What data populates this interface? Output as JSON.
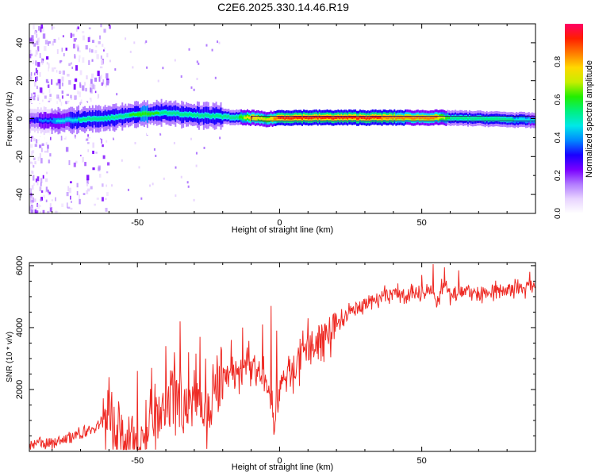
{
  "chart_data": [
    {
      "type": "heatmap",
      "title": "C2E6.2025.330.14.46.R19",
      "xlabel": "Height of straight line (km)",
      "ylabel": "Frequency (Hz)",
      "xlim": [
        -88,
        90
      ],
      "ylim": [
        -50,
        50
      ],
      "x_ticks": [
        -50,
        0,
        50
      ],
      "x_tick_labels": [
        "-50",
        "0",
        "50"
      ],
      "y_ticks": [
        -40,
        -20,
        0,
        20,
        40
      ],
      "y_tick_labels": [
        "-40",
        "-20",
        "0",
        "20",
        "40"
      ],
      "colorbar": {
        "label": "Normalized spectral amplitude",
        "range": [
          0,
          1
        ],
        "ticks": [
          0.0,
          0.2,
          0.4,
          0.6,
          0.8
        ],
        "tick_labels": [
          "0.0",
          "0.2",
          "0.4",
          "0.6",
          "0.8"
        ],
        "colors": [
          "#ffffff",
          "#e8d4ff",
          "#b27cff",
          "#7a00ff",
          "#1a00ff",
          "#0088ff",
          "#00e8e8",
          "#00f080",
          "#22ee00",
          "#c8ee00",
          "#ffd800",
          "#ff7a00",
          "#ff1e00",
          "#ff0066"
        ]
      },
      "ridge": {
        "x": [
          -88,
          -80,
          -70,
          -62,
          -55,
          -48,
          -40,
          -35,
          -30,
          -25,
          -20,
          -15,
          -10,
          -5,
          0,
          10,
          20,
          30,
          40,
          50,
          55,
          60,
          70,
          80,
          90
        ],
        "center_hz": [
          -1,
          -1,
          -0.5,
          0,
          1.5,
          2.5,
          3,
          2.5,
          2,
          1.5,
          1,
          0.5,
          0.5,
          -0.5,
          0.5,
          0.5,
          0.5,
          0.5,
          0.5,
          0.5,
          0.5,
          0.3,
          0,
          -0.5,
          -1
        ],
        "amplitude": [
          0.35,
          0.45,
          0.55,
          0.6,
          0.6,
          0.65,
          0.6,
          0.6,
          0.55,
          0.55,
          0.6,
          0.6,
          0.85,
          0.75,
          0.95,
          0.95,
          0.95,
          0.95,
          0.9,
          0.85,
          0.85,
          0.6,
          0.55,
          0.55,
          0.5
        ]
      }
    },
    {
      "type": "line",
      "xlabel": "Height of straight line (km)",
      "ylabel": "SNR (10 * v/v)",
      "xlim": [
        -88,
        90
      ],
      "ylim": [
        0,
        6100
      ],
      "x_ticks": [
        -50,
        0,
        50
      ],
      "x_tick_labels": [
        "-50",
        "0",
        "50"
      ],
      "y_ticks": [
        2000,
        4000,
        6000
      ],
      "y_tick_labels": [
        "2000",
        "4000",
        "6000"
      ],
      "line_color": "#ee2a24",
      "series": [
        {
          "name": "SNR",
          "x": [
            -88,
            -80,
            -75,
            -70,
            -66,
            -62,
            -60,
            -58,
            -55,
            -50,
            -47,
            -44,
            -40,
            -37,
            -34,
            -32,
            -30,
            -28,
            -25,
            -22,
            -19,
            -15,
            -12,
            -10,
            -7,
            -5,
            -3,
            -2,
            0,
            5,
            10,
            15,
            20,
            25,
            30,
            35,
            40,
            45,
            50,
            53,
            55,
            58,
            60,
            65,
            70,
            75,
            80,
            85,
            88,
            90
          ],
          "values": [
            200,
            300,
            400,
            550,
            700,
            1000,
            1500,
            700,
            450,
            350,
            650,
            950,
            1200,
            1600,
            1500,
            1300,
            1700,
            1900,
            1200,
            1900,
            2300,
            2500,
            2600,
            2800,
            2400,
            2200,
            1800,
            1000,
            2000,
            2700,
            3200,
            3700,
            4100,
            4500,
            4800,
            4950,
            5100,
            5100,
            5100,
            5200,
            4800,
            5400,
            5100,
            5200,
            5100,
            5200,
            5200,
            5250,
            5350,
            5250
          ]
        }
      ],
      "spikes": {
        "x": [
          -60,
          -50,
          -45,
          -40,
          -37,
          -35,
          -32,
          -28,
          -26,
          -22,
          -17,
          -13,
          -6,
          -3,
          -1,
          10,
          50,
          54,
          58,
          63,
          88
        ],
        "values": [
          2400,
          2600,
          2700,
          3400,
          3200,
          4200,
          3200,
          3700,
          3000,
          3100,
          3600,
          4000,
          4100,
          4700,
          3900,
          4300,
          5700,
          6050,
          5950,
          5850,
          5800
        ]
      }
    }
  ]
}
